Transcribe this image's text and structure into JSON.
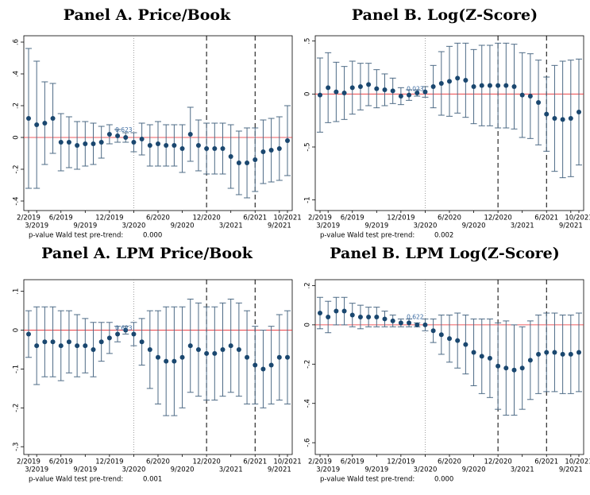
{
  "chart_data": [
    {
      "type": "point-range",
      "title": "Panel A. Price/Book",
      "color": "#1a476f",
      "categories": [
        "2/2019",
        "3/2019",
        null,
        null,
        "6/2019",
        null,
        null,
        "9/2019",
        null,
        null,
        "12/2019",
        null,
        null,
        "3/2020",
        null,
        null,
        "6/2020",
        null,
        null,
        "9/2020",
        null,
        null,
        "12/2020",
        null,
        null,
        "3/2021",
        null,
        null,
        "6/2021",
        null,
        null,
        "9/2021",
        "10/2021"
      ],
      "values": [
        0.12,
        0.08,
        0.09,
        0.12,
        -0.03,
        -0.03,
        -0.05,
        -0.04,
        -0.04,
        -0.03,
        0.02,
        0.01,
        0.0,
        -0.03,
        -0.01,
        -0.05,
        -0.04,
        -0.05,
        -0.05,
        -0.07,
        0.02,
        -0.05,
        -0.07,
        -0.07,
        -0.07,
        -0.12,
        -0.16,
        -0.16,
        -0.14,
        -0.09,
        -0.08,
        -0.07,
        -0.02
      ],
      "lower": [
        -0.32,
        -0.32,
        -0.17,
        -0.1,
        -0.21,
        -0.19,
        -0.2,
        -0.18,
        -0.17,
        -0.13,
        -0.04,
        -0.03,
        -0.03,
        -0.09,
        -0.11,
        -0.18,
        -0.18,
        -0.18,
        -0.18,
        -0.22,
        -0.15,
        -0.21,
        -0.23,
        -0.23,
        -0.23,
        -0.32,
        -0.36,
        -0.38,
        -0.34,
        -0.29,
        -0.28,
        -0.27,
        -0.24
      ],
      "upper": [
        0.56,
        0.48,
        0.35,
        0.34,
        0.15,
        0.13,
        0.1,
        0.1,
        0.09,
        0.07,
        0.08,
        0.05,
        0.03,
        0.03,
        0.09,
        0.08,
        0.1,
        0.08,
        0.08,
        0.08,
        0.19,
        0.11,
        0.09,
        0.09,
        0.09,
        0.08,
        0.04,
        0.06,
        0.06,
        0.11,
        0.12,
        0.13,
        0.2
      ],
      "ylim": [
        -0.46,
        0.64
      ],
      "yticks": [
        {
          "value": -0.4,
          "label": "-.4"
        },
        {
          "value": -0.2,
          "label": "-.2"
        },
        0,
        {
          "value": 0.2,
          "label": ".2"
        },
        {
          "value": 0.4,
          "label": ".4"
        },
        {
          "value": 0.6,
          "label": ".6"
        }
      ],
      "annotation": "0.623",
      "note_label": "p-value Wald test pre-trend:",
      "note_value": "0.000"
    },
    {
      "type": "point-range",
      "title": "Panel B. Log(Z-Score)",
      "color": "#1a476f",
      "categories": [
        "2/2019",
        "3/2019",
        null,
        null,
        "6/2019",
        null,
        null,
        "9/2019",
        null,
        null,
        "12/2019",
        null,
        null,
        "3/2020",
        null,
        null,
        "6/2020",
        null,
        null,
        "9/2020",
        null,
        null,
        "12/2020",
        null,
        null,
        "3/2021",
        null,
        null,
        "6/2021",
        null,
        null,
        "9/2021",
        "10/2021"
      ],
      "values": [
        -0.01,
        0.06,
        0.02,
        0.01,
        0.06,
        0.07,
        0.09,
        0.05,
        0.04,
        0.03,
        -0.02,
        -0.01,
        0.01,
        0.02,
        0.07,
        0.1,
        0.12,
        0.15,
        0.13,
        0.07,
        0.08,
        0.08,
        0.08,
        0.08,
        0.07,
        -0.01,
        -0.02,
        -0.08,
        -0.19,
        -0.23,
        -0.24,
        -0.23,
        -0.17
      ],
      "lower": [
        -0.36,
        -0.27,
        -0.26,
        -0.24,
        -0.19,
        -0.15,
        -0.11,
        -0.13,
        -0.11,
        -0.09,
        -0.1,
        -0.06,
        -0.02,
        -0.03,
        -0.13,
        -0.2,
        -0.21,
        -0.18,
        -0.22,
        -0.28,
        -0.3,
        -0.3,
        -0.32,
        -0.32,
        -0.33,
        -0.41,
        -0.42,
        -0.48,
        -0.54,
        -0.73,
        -0.79,
        -0.78,
        -0.67
      ],
      "upper": [
        0.34,
        0.39,
        0.3,
        0.26,
        0.31,
        0.29,
        0.29,
        0.23,
        0.19,
        0.15,
        0.06,
        0.04,
        0.04,
        0.07,
        0.27,
        0.4,
        0.45,
        0.48,
        0.48,
        0.42,
        0.46,
        0.46,
        0.48,
        0.48,
        0.47,
        0.39,
        0.38,
        0.32,
        0.16,
        0.27,
        0.31,
        0.32,
        0.33
      ],
      "ylim": [
        -1.1,
        0.55
      ],
      "yticks": [
        -1,
        {
          "value": -0.5,
          "label": "-.5"
        },
        0,
        {
          "value": 0.5,
          "label": ".5"
        }
      ],
      "annotation": "0.023",
      "note_label": "p-value Wald test pre-trend:",
      "note_value": "0.002"
    },
    {
      "type": "point-range",
      "title": "Panel A. LPM Price/Book",
      "color": "#1a476f",
      "categories": [
        "2/2019",
        "3/2019",
        null,
        null,
        "6/2019",
        null,
        null,
        "9/2019",
        null,
        null,
        "12/2019",
        null,
        null,
        "3/2020",
        null,
        null,
        "6/2020",
        null,
        null,
        "9/2020",
        null,
        null,
        "12/2020",
        null,
        null,
        "3/2021",
        null,
        null,
        "6/2021",
        null,
        null,
        "9/2021",
        "10/2021"
      ],
      "values": [
        -0.01,
        -0.04,
        -0.03,
        -0.03,
        -0.04,
        -0.03,
        -0.04,
        -0.04,
        -0.05,
        -0.03,
        -0.02,
        -0.01,
        0.0,
        -0.01,
        -0.03,
        -0.05,
        -0.07,
        -0.08,
        -0.08,
        -0.07,
        -0.04,
        -0.05,
        -0.06,
        -0.06,
        -0.05,
        -0.04,
        -0.05,
        -0.07,
        -0.09,
        -0.1,
        -0.09,
        -0.07,
        -0.07
      ],
      "lower": [
        -0.07,
        -0.14,
        -0.12,
        -0.12,
        -0.13,
        -0.11,
        -0.12,
        -0.11,
        -0.12,
        -0.08,
        -0.06,
        -0.03,
        -0.01,
        -0.04,
        -0.09,
        -0.15,
        -0.19,
        -0.22,
        -0.22,
        -0.2,
        -0.16,
        -0.17,
        -0.18,
        -0.18,
        -0.17,
        -0.16,
        -0.17,
        -0.19,
        -0.19,
        -0.2,
        -0.19,
        -0.18,
        -0.19
      ],
      "upper": [
        0.05,
        0.06,
        0.06,
        0.06,
        0.05,
        0.05,
        0.04,
        0.03,
        0.02,
        0.02,
        0.02,
        0.01,
        0.01,
        0.02,
        0.03,
        0.05,
        0.05,
        0.06,
        0.06,
        0.06,
        0.08,
        0.07,
        0.06,
        0.06,
        0.07,
        0.08,
        0.07,
        0.05,
        0.01,
        0.0,
        0.01,
        0.04,
        0.05
      ],
      "ylim": [
        -0.32,
        0.13
      ],
      "yticks": [
        {
          "value": -0.3,
          "label": "-.3"
        },
        {
          "value": -0.2,
          "label": "-.2"
        },
        {
          "value": -0.1,
          "label": "-.1"
        },
        0,
        {
          "value": 0.1,
          "label": ".1"
        }
      ],
      "annotation": "0.623",
      "note_label": "p-value Wald test pre-trend:",
      "note_value": "0.001"
    },
    {
      "type": "point-range",
      "title": "Panel B. LPM Log(Z-Score)",
      "color": "#1a476f",
      "categories": [
        "2/2019",
        "3/2019",
        null,
        null,
        "6/2019",
        null,
        null,
        "9/2019",
        null,
        null,
        "12/2019",
        null,
        null,
        "3/2020",
        null,
        null,
        "6/2020",
        null,
        null,
        "9/2020",
        null,
        null,
        "12/2020",
        null,
        null,
        "3/2021",
        null,
        null,
        "6/2021",
        null,
        null,
        "9/2021",
        "10/2021"
      ],
      "values": [
        0.06,
        0.04,
        0.07,
        0.07,
        0.05,
        0.04,
        0.04,
        0.04,
        0.03,
        0.02,
        0.01,
        0.01,
        0.0,
        0.0,
        -0.03,
        -0.05,
        -0.07,
        -0.08,
        -0.1,
        -0.14,
        -0.16,
        -0.17,
        -0.21,
        -0.22,
        -0.23,
        -0.22,
        -0.18,
        -0.15,
        -0.14,
        -0.14,
        -0.15,
        -0.15,
        -0.14
      ],
      "lower": [
        -0.02,
        -0.04,
        0.0,
        0.0,
        -0.01,
        -0.02,
        -0.01,
        -0.01,
        -0.01,
        -0.01,
        -0.01,
        -0.01,
        -0.01,
        -0.03,
        -0.09,
        -0.15,
        -0.19,
        -0.22,
        -0.25,
        -0.31,
        -0.35,
        -0.37,
        -0.43,
        -0.46,
        -0.46,
        -0.43,
        -0.38,
        -0.35,
        -0.34,
        -0.34,
        -0.35,
        -0.35,
        -0.34
      ],
      "upper": [
        0.14,
        0.12,
        0.14,
        0.14,
        0.11,
        0.1,
        0.09,
        0.09,
        0.07,
        0.05,
        0.03,
        0.03,
        0.01,
        0.03,
        0.03,
        0.05,
        0.05,
        0.06,
        0.05,
        0.03,
        0.03,
        0.03,
        0.01,
        0.02,
        0.0,
        -0.01,
        0.02,
        0.05,
        0.06,
        0.06,
        0.05,
        0.05,
        0.06
      ],
      "ylim": [
        -0.66,
        0.23
      ],
      "yticks": [
        {
          "value": -0.6,
          "label": "-.6"
        },
        {
          "value": -0.4,
          "label": "-.4"
        },
        {
          "value": -0.2,
          "label": "-.2"
        },
        0,
        {
          "value": 0.2,
          "label": ".2"
        }
      ],
      "annotation": "0.622",
      "note_label": "p-value Wald test pre-trend:",
      "note_value": "0.000"
    }
  ]
}
